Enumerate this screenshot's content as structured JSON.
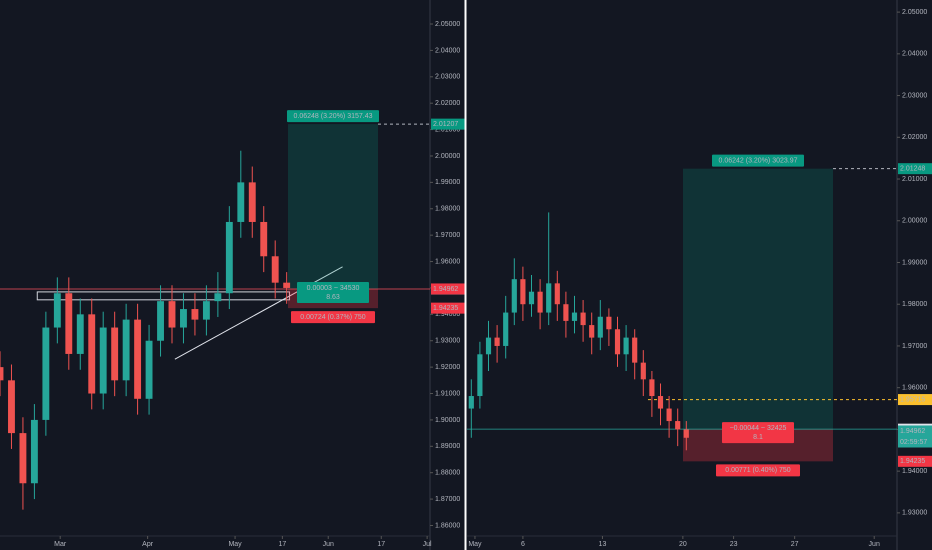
{
  "chart_data": [
    {
      "type": "candlestick",
      "x": [
        0,
        4,
        8,
        12,
        16,
        20,
        24,
        28,
        32,
        36,
        40,
        44,
        48,
        52,
        56,
        60,
        64,
        68,
        72,
        76,
        80,
        84,
        88,
        92,
        96,
        100
      ],
      "open": [
        1.92,
        1.915,
        1.895,
        1.876,
        1.9,
        1.935,
        1.948,
        1.925,
        1.94,
        1.91,
        1.935,
        1.915,
        1.938,
        1.908,
        1.93,
        1.945,
        1.935,
        1.942,
        1.938,
        1.945,
        1.948,
        1.975,
        1.99,
        1.975,
        1.962,
        1.952
      ],
      "high": [
        1.926,
        1.921,
        1.901,
        1.906,
        1.941,
        1.954,
        1.954,
        1.946,
        1.946,
        1.941,
        1.941,
        1.944,
        1.944,
        1.936,
        1.951,
        1.951,
        1.948,
        1.948,
        1.951,
        1.956,
        1.981,
        2.002,
        1.996,
        1.981,
        1.968,
        1.956
      ],
      "low": [
        1.909,
        1.889,
        1.866,
        1.87,
        1.894,
        1.929,
        1.919,
        1.919,
        1.904,
        1.904,
        1.909,
        1.909,
        1.902,
        1.902,
        1.924,
        1.929,
        1.929,
        1.932,
        1.932,
        1.939,
        1.942,
        1.969,
        1.969,
        1.956,
        1.946,
        1.944
      ],
      "close": [
        1.915,
        1.895,
        1.876,
        1.9,
        1.935,
        1.948,
        1.925,
        1.94,
        1.91,
        1.935,
        1.915,
        1.938,
        1.908,
        1.93,
        1.945,
        1.935,
        1.942,
        1.938,
        1.945,
        1.948,
        1.975,
        1.99,
        1.975,
        1.962,
        1.952,
        1.95
      ],
      "up_color": "#26a69a",
      "down_color": "#ef5350",
      "xlim": [
        0,
        150
      ],
      "xticks": [
        {
          "value": 21,
          "label": "Mar"
        },
        {
          "value": 51.5,
          "label": "Apr"
        },
        {
          "value": 82,
          "label": "May"
        },
        {
          "value": 98.5,
          "label": "17"
        },
        {
          "value": 114.5,
          "label": "Jun"
        },
        {
          "value": 133,
          "label": "17"
        },
        {
          "value": 149,
          "label": "Jul"
        }
      ],
      "ylim": [
        1.8545,
        2.0591
      ],
      "yticks": [
        {
          "value": 1.86,
          "label": "1.86000"
        },
        {
          "value": 1.87,
          "label": "1.87000"
        },
        {
          "value": 1.88,
          "label": "1.88000"
        },
        {
          "value": 1.89,
          "label": "1.89000"
        },
        {
          "value": 1.9,
          "label": "1.90000"
        },
        {
          "value": 1.91,
          "label": "1.91000"
        },
        {
          "value": 1.92,
          "label": "1.92000"
        },
        {
          "value": 1.93,
          "label": "1.93000"
        },
        {
          "value": 1.94,
          "label": "1.94000"
        },
        {
          "value": 1.95,
          "label": "1.95000"
        },
        {
          "value": 1.96,
          "label": "1.96000"
        },
        {
          "value": 1.97,
          "label": "1.97000"
        },
        {
          "value": 1.98,
          "label": "1.98000"
        },
        {
          "value": 1.99,
          "label": "1.99000"
        },
        {
          "value": 2.0,
          "label": "2.00000"
        },
        {
          "value": 2.01,
          "label": "2.01000"
        },
        {
          "value": 2.02,
          "label": "2.02000"
        },
        {
          "value": 2.03,
          "label": "2.03000"
        },
        {
          "value": 2.04,
          "label": "2.04000"
        },
        {
          "value": 2.05,
          "label": "2.05000"
        }
      ],
      "zone": {
        "x": [
          13,
          101
        ],
        "y": [
          1.9455,
          1.9485
        ]
      },
      "trend_line": {
        "x": [
          61,
          119.5
        ],
        "y": [
          1.923,
          1.958
        ]
      },
      "position": {
        "target": 2.01207,
        "entry": 1.94959,
        "stop": 1.94235,
        "entry_line_color": "#f7525f",
        "entry_box_color": "#089981",
        "target_label": "0.06248 (3.20%) 3157.43",
        "entry_label": "0.00003 ~ 34530",
        "ratio_label": "8.63",
        "stop_label": "0.00724 (0.37%) 750"
      },
      "price_tags": [
        {
          "value": 1.94962,
          "color": "#f23645"
        }
      ]
    },
    {
      "type": "candlestick",
      "x": [
        1,
        3,
        5,
        7,
        9,
        11,
        13,
        15,
        17,
        19,
        21,
        23,
        25,
        27,
        29,
        31,
        33,
        35,
        37,
        39,
        41,
        43,
        45,
        47,
        49,
        51
      ],
      "open": [
        1.955,
        1.958,
        1.968,
        1.972,
        1.97,
        1.978,
        1.986,
        1.98,
        1.983,
        1.978,
        1.985,
        1.98,
        1.976,
        1.978,
        1.975,
        1.972,
        1.977,
        1.974,
        1.968,
        1.972,
        1.966,
        1.962,
        1.958,
        1.955,
        1.952,
        1.95
      ],
      "high": [
        1.962,
        1.971,
        1.976,
        1.975,
        1.982,
        1.991,
        1.989,
        1.987,
        1.986,
        2.002,
        1.988,
        1.983,
        1.982,
        1.981,
        1.978,
        1.981,
        1.979,
        1.977,
        1.975,
        1.974,
        1.969,
        1.964,
        1.961,
        1.958,
        1.955,
        1.952
      ],
      "low": [
        1.948,
        1.955,
        1.964,
        1.966,
        1.967,
        1.975,
        1.976,
        1.977,
        1.974,
        1.975,
        1.976,
        1.972,
        1.973,
        1.971,
        1.968,
        1.969,
        1.97,
        1.965,
        1.964,
        1.962,
        1.958,
        1.953,
        1.951,
        1.948,
        1.946,
        1.945
      ],
      "close": [
        1.958,
        1.968,
        1.972,
        1.97,
        1.978,
        1.986,
        1.98,
        1.983,
        1.978,
        1.985,
        1.98,
        1.976,
        1.978,
        1.975,
        1.972,
        1.977,
        1.974,
        1.968,
        1.972,
        1.966,
        1.962,
        1.958,
        1.955,
        1.952,
        1.95,
        1.948
      ],
      "up_color": "#26a69a",
      "down_color": "#ef5350",
      "xlim": [
        0,
        100
      ],
      "xticks": [
        {
          "value": 1.85,
          "label": "May"
        },
        {
          "value": 13,
          "label": "6"
        },
        {
          "value": 31.5,
          "label": "13"
        },
        {
          "value": 50.2,
          "label": "20"
        },
        {
          "value": 62,
          "label": "23"
        },
        {
          "value": 76.2,
          "label": "27"
        },
        {
          "value": 94.7,
          "label": "Jun"
        }
      ],
      "ylim": [
        1.9235,
        2.0529
      ],
      "yticks": [
        {
          "value": 1.93,
          "label": "1.93000"
        },
        {
          "value": 1.94,
          "label": "1.94000"
        },
        {
          "value": 1.95,
          "label": "1.95000"
        },
        {
          "value": 1.96,
          "label": "1.96000"
        },
        {
          "value": 1.97,
          "label": "1.97000"
        },
        {
          "value": 1.98,
          "label": "1.98000"
        },
        {
          "value": 1.99,
          "label": "1.99000"
        },
        {
          "value": 2.0,
          "label": "2.00000"
        },
        {
          "value": 2.01,
          "label": "2.01000"
        },
        {
          "value": 2.02,
          "label": "2.02000"
        },
        {
          "value": 2.03,
          "label": "2.03000"
        },
        {
          "value": 2.04,
          "label": "2.04000"
        },
        {
          "value": 2.05,
          "label": "2.05000"
        }
      ],
      "position": {
        "target": 2.01248,
        "entry": 1.95006,
        "stop": 1.94235,
        "entry_line_color": "#26a69a",
        "entry_box_color": "#f23645",
        "target_label": "0.06242 (3.20%) 3023.97",
        "entry_label": "−0.00044 ~ 32425",
        "ratio_label": "8.1",
        "stop_label": "0.00771 (0.40%) 750"
      },
      "price_tags": [
        {
          "value": 1.95715,
          "color": "#fbc02d"
        },
        {
          "value": 1.94962,
          "color": "#26a69a"
        }
      ],
      "countdown": "02:59:57"
    }
  ]
}
